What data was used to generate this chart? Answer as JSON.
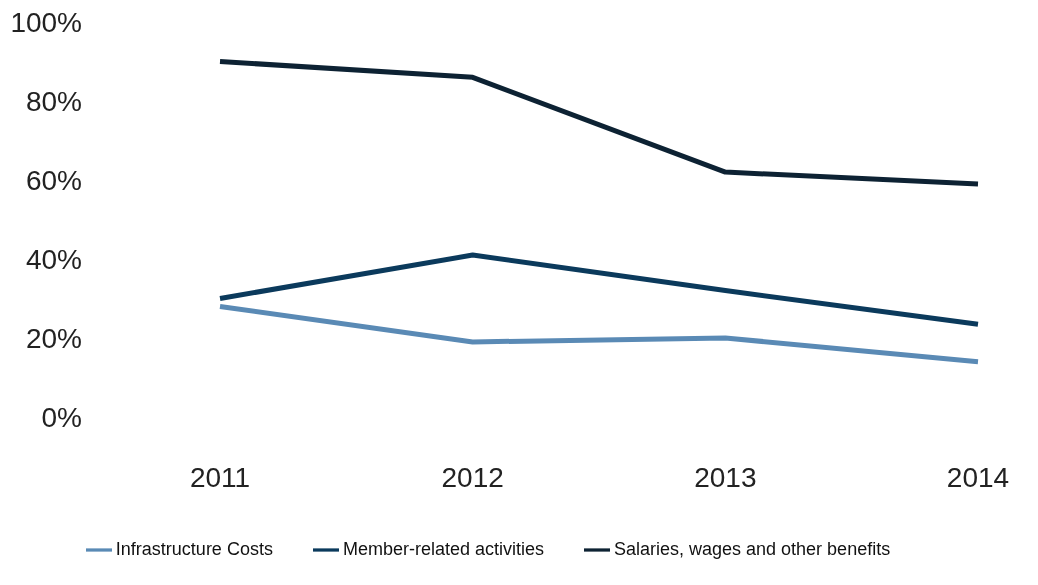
{
  "chart_data": {
    "type": "line",
    "categories": [
      "2011",
      "2012",
      "2013",
      "2014"
    ],
    "series": [
      {
        "name": "Salaries, wages and other benefits",
        "color": "#0d2233",
        "values": [
          90,
          86,
          62,
          59
        ]
      },
      {
        "name": "Member-related activities",
        "color": "#0b3a5c",
        "values": [
          30,
          41,
          32,
          23.5
        ]
      },
      {
        "name": "Infrastructure Costs",
        "color": "#5a8ab5",
        "values": [
          28,
          19,
          20,
          14
        ]
      }
    ],
    "ylim": [
      0,
      100
    ],
    "yticks": [
      {
        "value": 0,
        "label": "0%"
      },
      {
        "value": 20,
        "label": "20%"
      },
      {
        "value": 40,
        "label": "40%"
      },
      {
        "value": 60,
        "label": "60%"
      },
      {
        "value": 80,
        "label": "80%"
      },
      {
        "value": 100,
        "label": "100%"
      }
    ],
    "grid": false,
    "legend": "bottom",
    "marker": "none",
    "line_style": "solid"
  }
}
